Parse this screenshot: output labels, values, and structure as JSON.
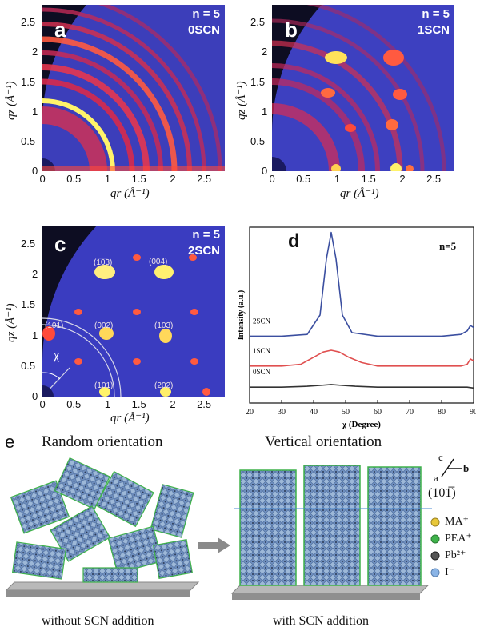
{
  "panels": {
    "a": {
      "letter": "a",
      "n_label": "n = 5",
      "sample": "0SCN"
    },
    "b": {
      "letter": "b",
      "n_label": "n = 5",
      "sample": "1SCN"
    },
    "c": {
      "letter": "c",
      "n_label": "n = 5",
      "sample": "2SCN",
      "reflections": [
        "(1̅0̅3)",
        "(004)",
        "(101̅)",
        "(002)",
        "(103)",
        "(101)",
        "(202)"
      ],
      "chi_label": "χ"
    }
  },
  "axes": {
    "ylabel": "qz (Å⁻¹)",
    "xlabel": "qr (Å⁻¹)",
    "xticks": [
      "0",
      "0.5",
      "1",
      "1.5",
      "2",
      "2.5"
    ],
    "yticks": [
      "0",
      "0.5",
      "1",
      "1.5",
      "2",
      "2.5"
    ]
  },
  "chart_data": {
    "type": "line",
    "panel_letter": "d",
    "annotation": "n=5",
    "xlabel": "χ (Degree)",
    "ylabel": "Intensity (a.u.)",
    "xlim": [
      20,
      90
    ],
    "xticks": [
      "20",
      "30",
      "40",
      "50",
      "60",
      "70",
      "80",
      "90"
    ],
    "series": [
      {
        "name": "2SCN",
        "color": "#3b4fa0",
        "x": [
          20,
          30,
          38,
          42,
          44,
          45.5,
          47,
          49,
          52,
          60,
          70,
          80,
          86,
          88,
          89,
          90
        ],
        "y": [
          0.38,
          0.38,
          0.39,
          0.5,
          0.82,
          0.97,
          0.82,
          0.5,
          0.4,
          0.38,
          0.38,
          0.38,
          0.39,
          0.41,
          0.44,
          0.43
        ]
      },
      {
        "name": "1SCN",
        "color": "#e05050",
        "x": [
          20,
          30,
          36,
          40,
          43,
          45.5,
          48,
          51,
          55,
          60,
          70,
          80,
          86,
          88,
          89,
          90
        ],
        "y": [
          0.21,
          0.21,
          0.22,
          0.26,
          0.29,
          0.3,
          0.29,
          0.26,
          0.23,
          0.21,
          0.21,
          0.21,
          0.21,
          0.22,
          0.25,
          0.24
        ]
      },
      {
        "name": "0SCN",
        "color": "#333333",
        "x": [
          20,
          30,
          38,
          42,
          45.5,
          49,
          53,
          60,
          70,
          80,
          88,
          90
        ],
        "y": [
          0.09,
          0.09,
          0.095,
          0.1,
          0.105,
          0.1,
          0.095,
          0.09,
          0.09,
          0.09,
          0.09,
          0.085
        ]
      }
    ]
  },
  "panel_e": {
    "letter": "e",
    "title_left": "Random orientation",
    "title_right": "Vertical orientation",
    "caption_left": "without SCN addition",
    "caption_right": "with SCN addition",
    "plane_label": "(101̅)",
    "axes_labels": {
      "c": "c",
      "b": "b",
      "a": "a"
    },
    "legend": [
      {
        "label": "MA⁺",
        "color": "#e8c83a"
      },
      {
        "label": "PEA⁺",
        "color": "#3fb24a"
      },
      {
        "label": "Pb²⁺",
        "color": "#555555"
      },
      {
        "label": "I⁻",
        "color": "#8ab4e6"
      }
    ]
  }
}
